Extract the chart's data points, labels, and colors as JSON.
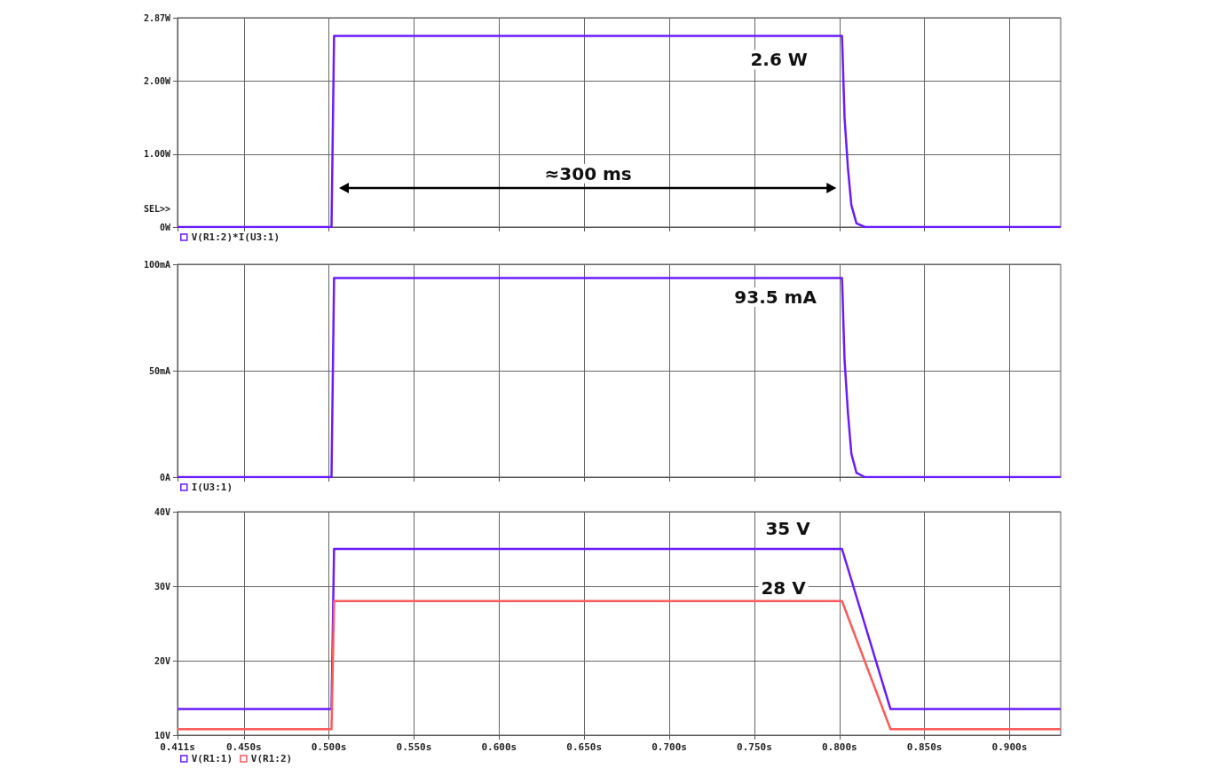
{
  "chart_data": [
    {
      "type": "line",
      "x": [
        0.411,
        0.5015,
        0.503,
        0.8015,
        0.803,
        0.805,
        0.807,
        0.81,
        0.815,
        0.93
      ],
      "xlim": [
        0.411,
        0.93
      ],
      "xticks": [
        {
          "value": 0.411,
          "label": null
        },
        {
          "value": 0.45,
          "label": null
        },
        {
          "value": 0.5,
          "label": null
        },
        {
          "value": 0.55,
          "label": null
        },
        {
          "value": 0.6,
          "label": null
        },
        {
          "value": 0.65,
          "label": null
        },
        {
          "value": 0.7,
          "label": null
        },
        {
          "value": 0.75,
          "label": null
        },
        {
          "value": 0.8,
          "label": null
        },
        {
          "value": 0.85,
          "label": null
        },
        {
          "value": 0.9,
          "label": null
        }
      ],
      "ylim": [
        0,
        2.87
      ],
      "yticks": [
        {
          "value": 0,
          "label": "0W"
        },
        {
          "value": 1,
          "label": "1.00W"
        },
        {
          "value": 2,
          "label": "2.00W"
        },
        {
          "value": 2.87,
          "label": "2.87W"
        }
      ],
      "tick_labels": "y",
      "grid": true,
      "legend": "bottom left",
      "marker": "none",
      "series": [
        {
          "name": "V(R1:2)*I(U3:1)",
          "color": "#6a1bff",
          "values": [
            0,
            0,
            2.62,
            2.62,
            1.5,
            0.8,
            0.3,
            0.05,
            0,
            0
          ]
        }
      ],
      "annotations": [
        "SEL>>",
        "2.6 W",
        "≈300 ms"
      ]
    },
    {
      "type": "line",
      "x": [
        0.411,
        0.5015,
        0.503,
        0.8015,
        0.803,
        0.805,
        0.807,
        0.81,
        0.815,
        0.93
      ],
      "xlim": [
        0.411,
        0.93
      ],
      "xticks": [
        {
          "value": 0.411,
          "label": null
        },
        {
          "value": 0.45,
          "label": null
        },
        {
          "value": 0.5,
          "label": null
        },
        {
          "value": 0.55,
          "label": null
        },
        {
          "value": 0.6,
          "label": null
        },
        {
          "value": 0.65,
          "label": null
        },
        {
          "value": 0.7,
          "label": null
        },
        {
          "value": 0.75,
          "label": null
        },
        {
          "value": 0.8,
          "label": null
        },
        {
          "value": 0.85,
          "label": null
        },
        {
          "value": 0.9,
          "label": null
        }
      ],
      "ylim": [
        0,
        100
      ],
      "yticks": [
        {
          "value": 0,
          "label": "0A"
        },
        {
          "value": 50,
          "label": "50mA"
        },
        {
          "value": 100,
          "label": "100mA"
        }
      ],
      "tick_labels": "y",
      "grid": true,
      "legend": "bottom left",
      "marker": "none",
      "series": [
        {
          "name": "I(U3:1)",
          "color": "#6a1bff",
          "values": [
            0,
            0,
            93.5,
            93.5,
            55,
            30,
            11,
            2,
            0,
            0
          ]
        }
      ],
      "annotations": [
        "93.5 mA"
      ]
    },
    {
      "type": "line",
      "x": [
        0.411,
        0.5015,
        0.503,
        0.8015,
        0.83,
        0.93
      ],
      "xlim": [
        0.411,
        0.93
      ],
      "xticks": [
        {
          "value": 0.411,
          "label": "0.411s"
        },
        {
          "value": 0.45,
          "label": "0.450s"
        },
        {
          "value": 0.5,
          "label": "0.500s"
        },
        {
          "value": 0.55,
          "label": "0.550s"
        },
        {
          "value": 0.6,
          "label": "0.600s"
        },
        {
          "value": 0.65,
          "label": "0.650s"
        },
        {
          "value": 0.7,
          "label": "0.700s"
        },
        {
          "value": 0.75,
          "label": "0.750s"
        },
        {
          "value": 0.8,
          "label": "0.800s"
        },
        {
          "value": 0.85,
          "label": "0.850s"
        },
        {
          "value": 0.9,
          "label": "0.900s"
        }
      ],
      "ylim": [
        10,
        40
      ],
      "yticks": [
        {
          "value": 10,
          "label": "10V"
        },
        {
          "value": 20,
          "label": "20V"
        },
        {
          "value": 30,
          "label": "30V"
        },
        {
          "value": 40,
          "label": "40V"
        }
      ],
      "grid": true,
      "legend": "bottom left",
      "marker": "none",
      "series": [
        {
          "name": "V(R1:1)",
          "color": "#6a1bff",
          "values": [
            13.5,
            13.5,
            35,
            35,
            13.5,
            13.5
          ]
        },
        {
          "name": "V(R1:2)",
          "color": "#ff5a5a",
          "values": [
            10.8,
            10.8,
            28,
            28,
            10.8,
            10.8
          ]
        }
      ],
      "annotations": [
        "35 V",
        "28 V"
      ]
    }
  ]
}
